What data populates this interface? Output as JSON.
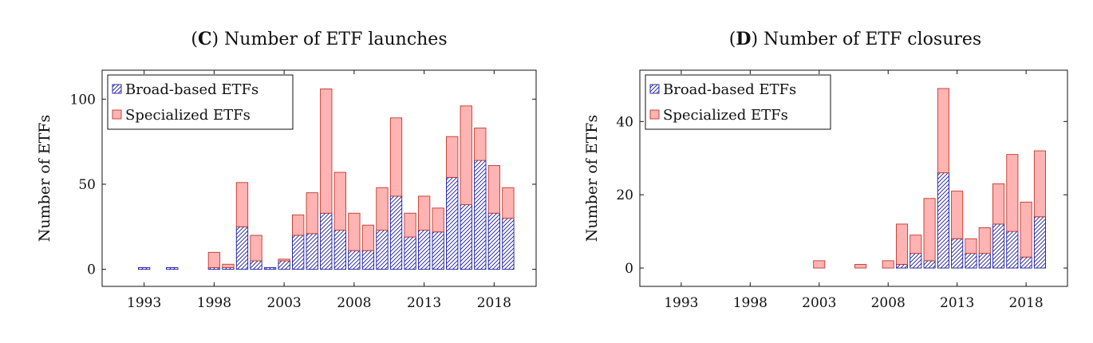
{
  "chart_data": [
    {
      "type": "bar",
      "stacked": true,
      "title_letter": "C",
      "title_text": "Number of ETF launches",
      "xlabel": "",
      "ylabel": "Number of ETFs",
      "xlim": [
        1990,
        2021
      ],
      "ylim": [
        -10,
        117
      ],
      "yticks": [
        0,
        50,
        100
      ],
      "xticks": [
        1993,
        1998,
        2003,
        2008,
        2013,
        2018
      ],
      "grid": false,
      "legend_position": "top-left",
      "x": [
        1993,
        1995,
        1998,
        1999,
        2000,
        2001,
        2002,
        2003,
        2004,
        2005,
        2006,
        2007,
        2008,
        2009,
        2010,
        2011,
        2012,
        2013,
        2014,
        2015,
        2016,
        2017,
        2018,
        2019
      ],
      "series": [
        {
          "name": "Broad-based ETFs",
          "values": [
            1,
            1,
            1,
            1,
            25,
            5,
            1,
            5,
            20,
            21,
            33,
            23,
            11,
            11,
            23,
            43,
            19,
            23,
            22,
            54,
            38,
            64,
            33,
            30
          ]
        },
        {
          "name": "Specialized ETFs",
          "values": [
            0,
            0,
            9,
            2,
            26,
            15,
            0,
            1,
            12,
            24,
            73,
            34,
            22,
            15,
            25,
            46,
            14,
            20,
            14,
            24,
            58,
            19,
            28,
            18
          ]
        }
      ]
    },
    {
      "type": "bar",
      "stacked": true,
      "title_letter": "D",
      "title_text": "Number of ETF closures",
      "xlabel": "",
      "ylabel": "Number of ETFs",
      "xlim": [
        1990,
        2021
      ],
      "ylim": [
        -5,
        54
      ],
      "yticks": [
        0,
        20,
        40
      ],
      "xticks": [
        1993,
        1998,
        2003,
        2008,
        2013,
        2018
      ],
      "grid": false,
      "legend_position": "top-left",
      "x": [
        2003,
        2006,
        2008,
        2009,
        2010,
        2011,
        2012,
        2013,
        2014,
        2015,
        2016,
        2017,
        2018,
        2019
      ],
      "series": [
        {
          "name": "Broad-based ETFs",
          "values": [
            0,
            0,
            0,
            1,
            4,
            2,
            26,
            8,
            4,
            4,
            12,
            10,
            3,
            14
          ]
        },
        {
          "name": "Specialized ETFs",
          "values": [
            2,
            1,
            2,
            11,
            5,
            17,
            23,
            13,
            4,
            7,
            11,
            21,
            15,
            18
          ]
        }
      ]
    }
  ],
  "colors": {
    "broad_stroke": "#1a1aa6",
    "broad_fill": "#ffffff",
    "spec_fill": "#ffb3b3",
    "spec_stroke": "#c0392b"
  }
}
